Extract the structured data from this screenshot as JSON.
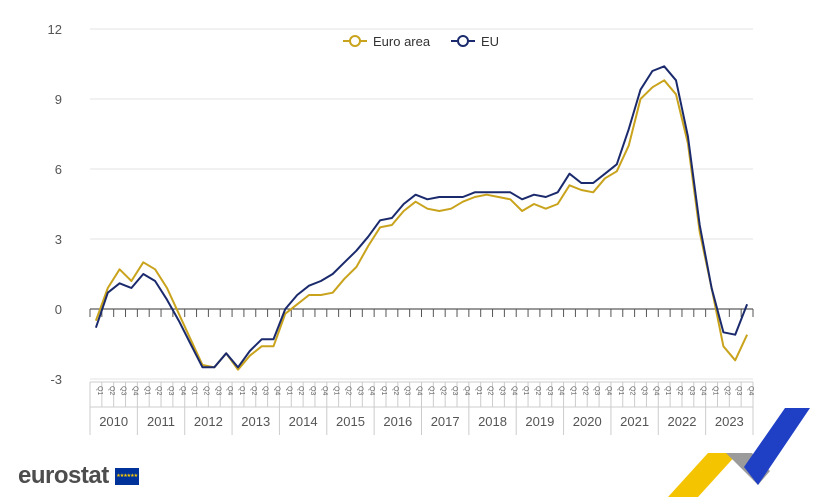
{
  "chart_data": {
    "type": "line",
    "title": "",
    "xlabel": "",
    "ylabel": "",
    "ylim": [
      -3,
      12
    ],
    "yticks": [
      "12",
      "9",
      "6",
      "3",
      "0",
      "-3"
    ],
    "quarter_labels": [
      "Q1",
      "Q2",
      "Q3",
      "Q4"
    ],
    "years": [
      "2010",
      "2011",
      "2012",
      "2013",
      "2014",
      "2015",
      "2016",
      "2017",
      "2018",
      "2019",
      "2020",
      "2021",
      "2022",
      "2023"
    ],
    "legend_position": "top-center",
    "grid": true,
    "series": [
      {
        "name": "Euro area",
        "color": "#c9a31c",
        "values": [
          -0.5,
          0.9,
          1.7,
          1.2,
          2.0,
          1.7,
          0.9,
          -0.2,
          -1.3,
          -2.4,
          -2.5,
          -1.9,
          -2.6,
          -2.0,
          -1.6,
          -1.6,
          -0.2,
          0.2,
          0.6,
          0.6,
          0.7,
          1.3,
          1.8,
          2.7,
          3.5,
          3.6,
          4.2,
          4.6,
          4.3,
          4.2,
          4.3,
          4.6,
          4.8,
          4.9,
          4.8,
          4.7,
          4.2,
          4.5,
          4.3,
          4.5,
          5.3,
          5.1,
          5.0,
          5.6,
          5.9,
          7.0,
          9.0,
          9.5,
          9.8,
          9.2,
          7.1,
          3.3,
          0.9,
          -1.6,
          -2.2,
          -1.1
        ]
      },
      {
        "name": "EU",
        "color": "#1a2a6c",
        "values": [
          -0.8,
          0.7,
          1.1,
          0.9,
          1.5,
          1.2,
          0.4,
          -0.5,
          -1.5,
          -2.5,
          -2.5,
          -1.9,
          -2.5,
          -1.8,
          -1.3,
          -1.3,
          0.0,
          0.6,
          1.0,
          1.2,
          1.5,
          2.0,
          2.5,
          3.1,
          3.8,
          3.9,
          4.5,
          4.9,
          4.7,
          4.8,
          4.8,
          4.8,
          5.0,
          5.0,
          5.0,
          5.0,
          4.7,
          4.9,
          4.8,
          5.0,
          5.8,
          5.4,
          5.4,
          5.8,
          6.2,
          7.7,
          9.4,
          10.2,
          10.4,
          9.8,
          7.4,
          3.6,
          0.9,
          -1.0,
          -1.1,
          0.2
        ]
      }
    ]
  },
  "branding": {
    "logo_text": "eurostat"
  }
}
